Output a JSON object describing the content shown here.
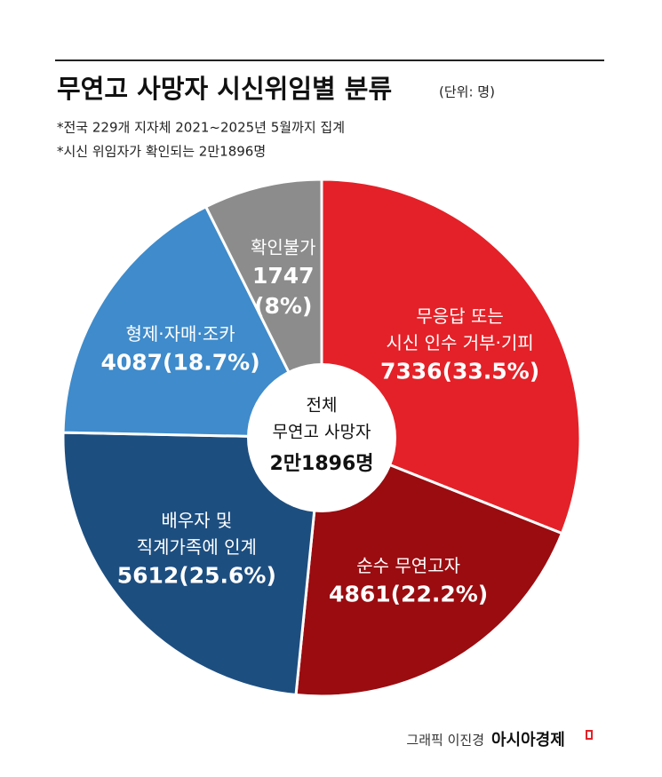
{
  "chart_data": {
    "type": "pie",
    "title": "무연고 사망자 시신위임별 분류",
    "unit": "(단위: 명)",
    "subtitle": [
      "*전국 229개 지자체 2021~2025년 5월까지 집계",
      "*시신 위임자가 확인되는 2만1896명"
    ],
    "categories": [
      [
        "무응답 또는",
        "시신 인수 거부·기피"
      ],
      [
        "순수 무연고자"
      ],
      [
        "배우자 및",
        "직계가족에 인계"
      ],
      [
        "형제·자매·조카"
      ],
      [
        "확인불가"
      ]
    ],
    "values": [
      7336,
      4861,
      5612,
      4087,
      1747
    ],
    "value_labels": [
      [
        "7336(33.5%)"
      ],
      [
        "4861(22.2%)"
      ],
      [
        "5612(25.6%)"
      ],
      [
        "4087(18.7%)"
      ],
      [
        "1747",
        "(8%)"
      ]
    ],
    "colors": [
      "#e42128",
      "#9a0c10",
      "#1d4e80",
      "#3f8bcb",
      "#8c8c8c"
    ],
    "center_label": [
      "전체",
      "무연고 사망자",
      "2만1896명"
    ],
    "credit": "그래픽 이진경",
    "brand": "아시아경제"
  }
}
